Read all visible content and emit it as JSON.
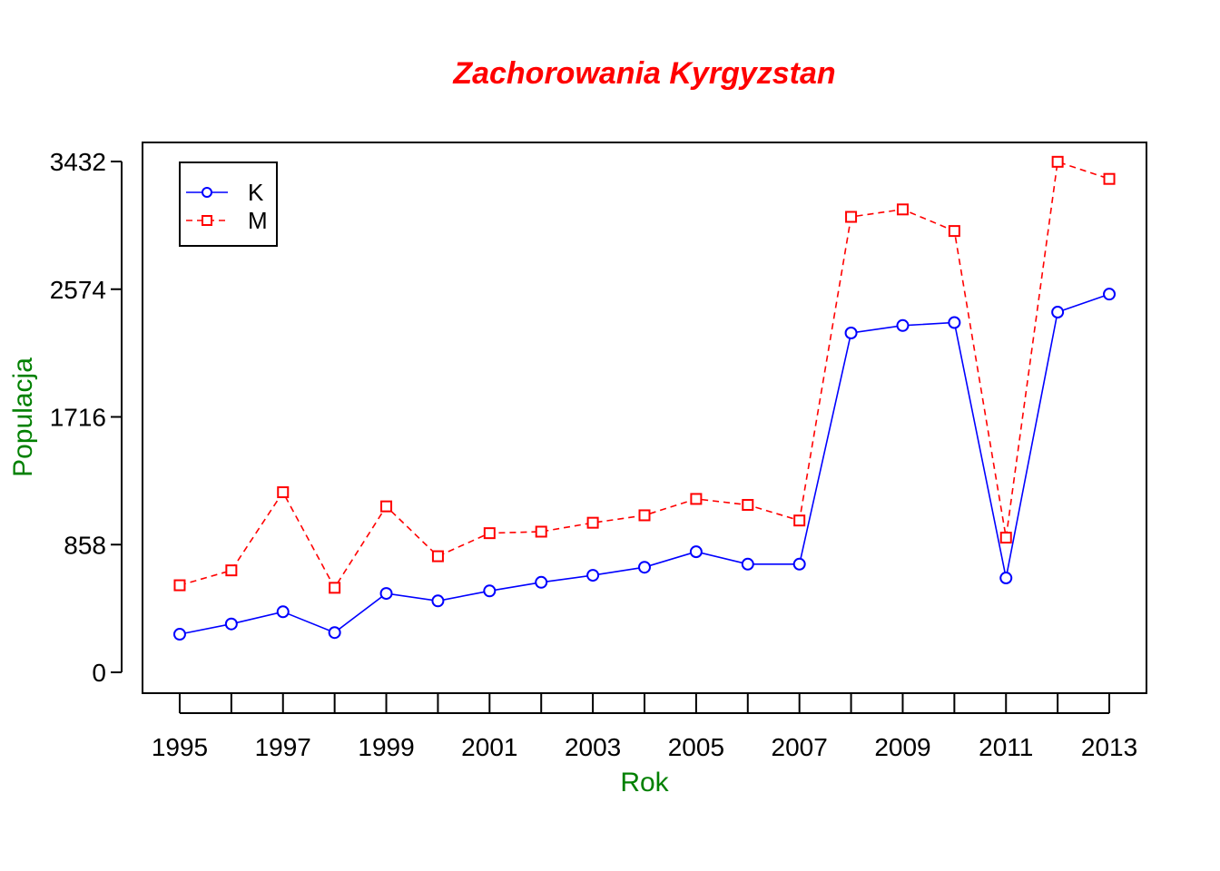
{
  "chart_data": {
    "type": "line",
    "title": "Zachorowania Kyrgyzstan",
    "xlabel": "Rok",
    "ylabel": "Populacja",
    "x": [
      1995,
      1996,
      1997,
      1998,
      1999,
      2000,
      2001,
      2002,
      2003,
      2004,
      2005,
      2006,
      2007,
      2008,
      2009,
      2010,
      2011,
      2012,
      2013
    ],
    "x_tick_labels": [
      "1995",
      "1997",
      "1999",
      "2001",
      "2003",
      "2005",
      "2007",
      "2009",
      "2011",
      "2013"
    ],
    "y_ticks": [
      0,
      858,
      1716,
      2574,
      3432
    ],
    "y_tick_labels": [
      "0",
      "858",
      "1716",
      "2574",
      "3432"
    ],
    "ylim": [
      -140,
      3560
    ],
    "xlim": [
      1994.28,
      2013.72
    ],
    "grid": false,
    "legend_position": "top-left",
    "series": [
      {
        "name": "K",
        "color": "#0000ff",
        "line_style": "solid",
        "marker": "circle",
        "values": [
          256,
          325,
          407,
          267,
          530,
          480,
          547,
          605,
          652,
          706,
          810,
          727,
          727,
          2280,
          2330,
          2350,
          634,
          2420,
          2541
        ]
      },
      {
        "name": "M",
        "color": "#ff0000",
        "line_style": "dashed",
        "marker": "square",
        "values": [
          585,
          685,
          1210,
          568,
          1115,
          780,
          935,
          945,
          1005,
          1055,
          1165,
          1125,
          1020,
          3060,
          3110,
          2965,
          905,
          3430,
          3315
        ]
      }
    ],
    "title_color": "#ff0000",
    "axis_label_color": "#008000"
  }
}
